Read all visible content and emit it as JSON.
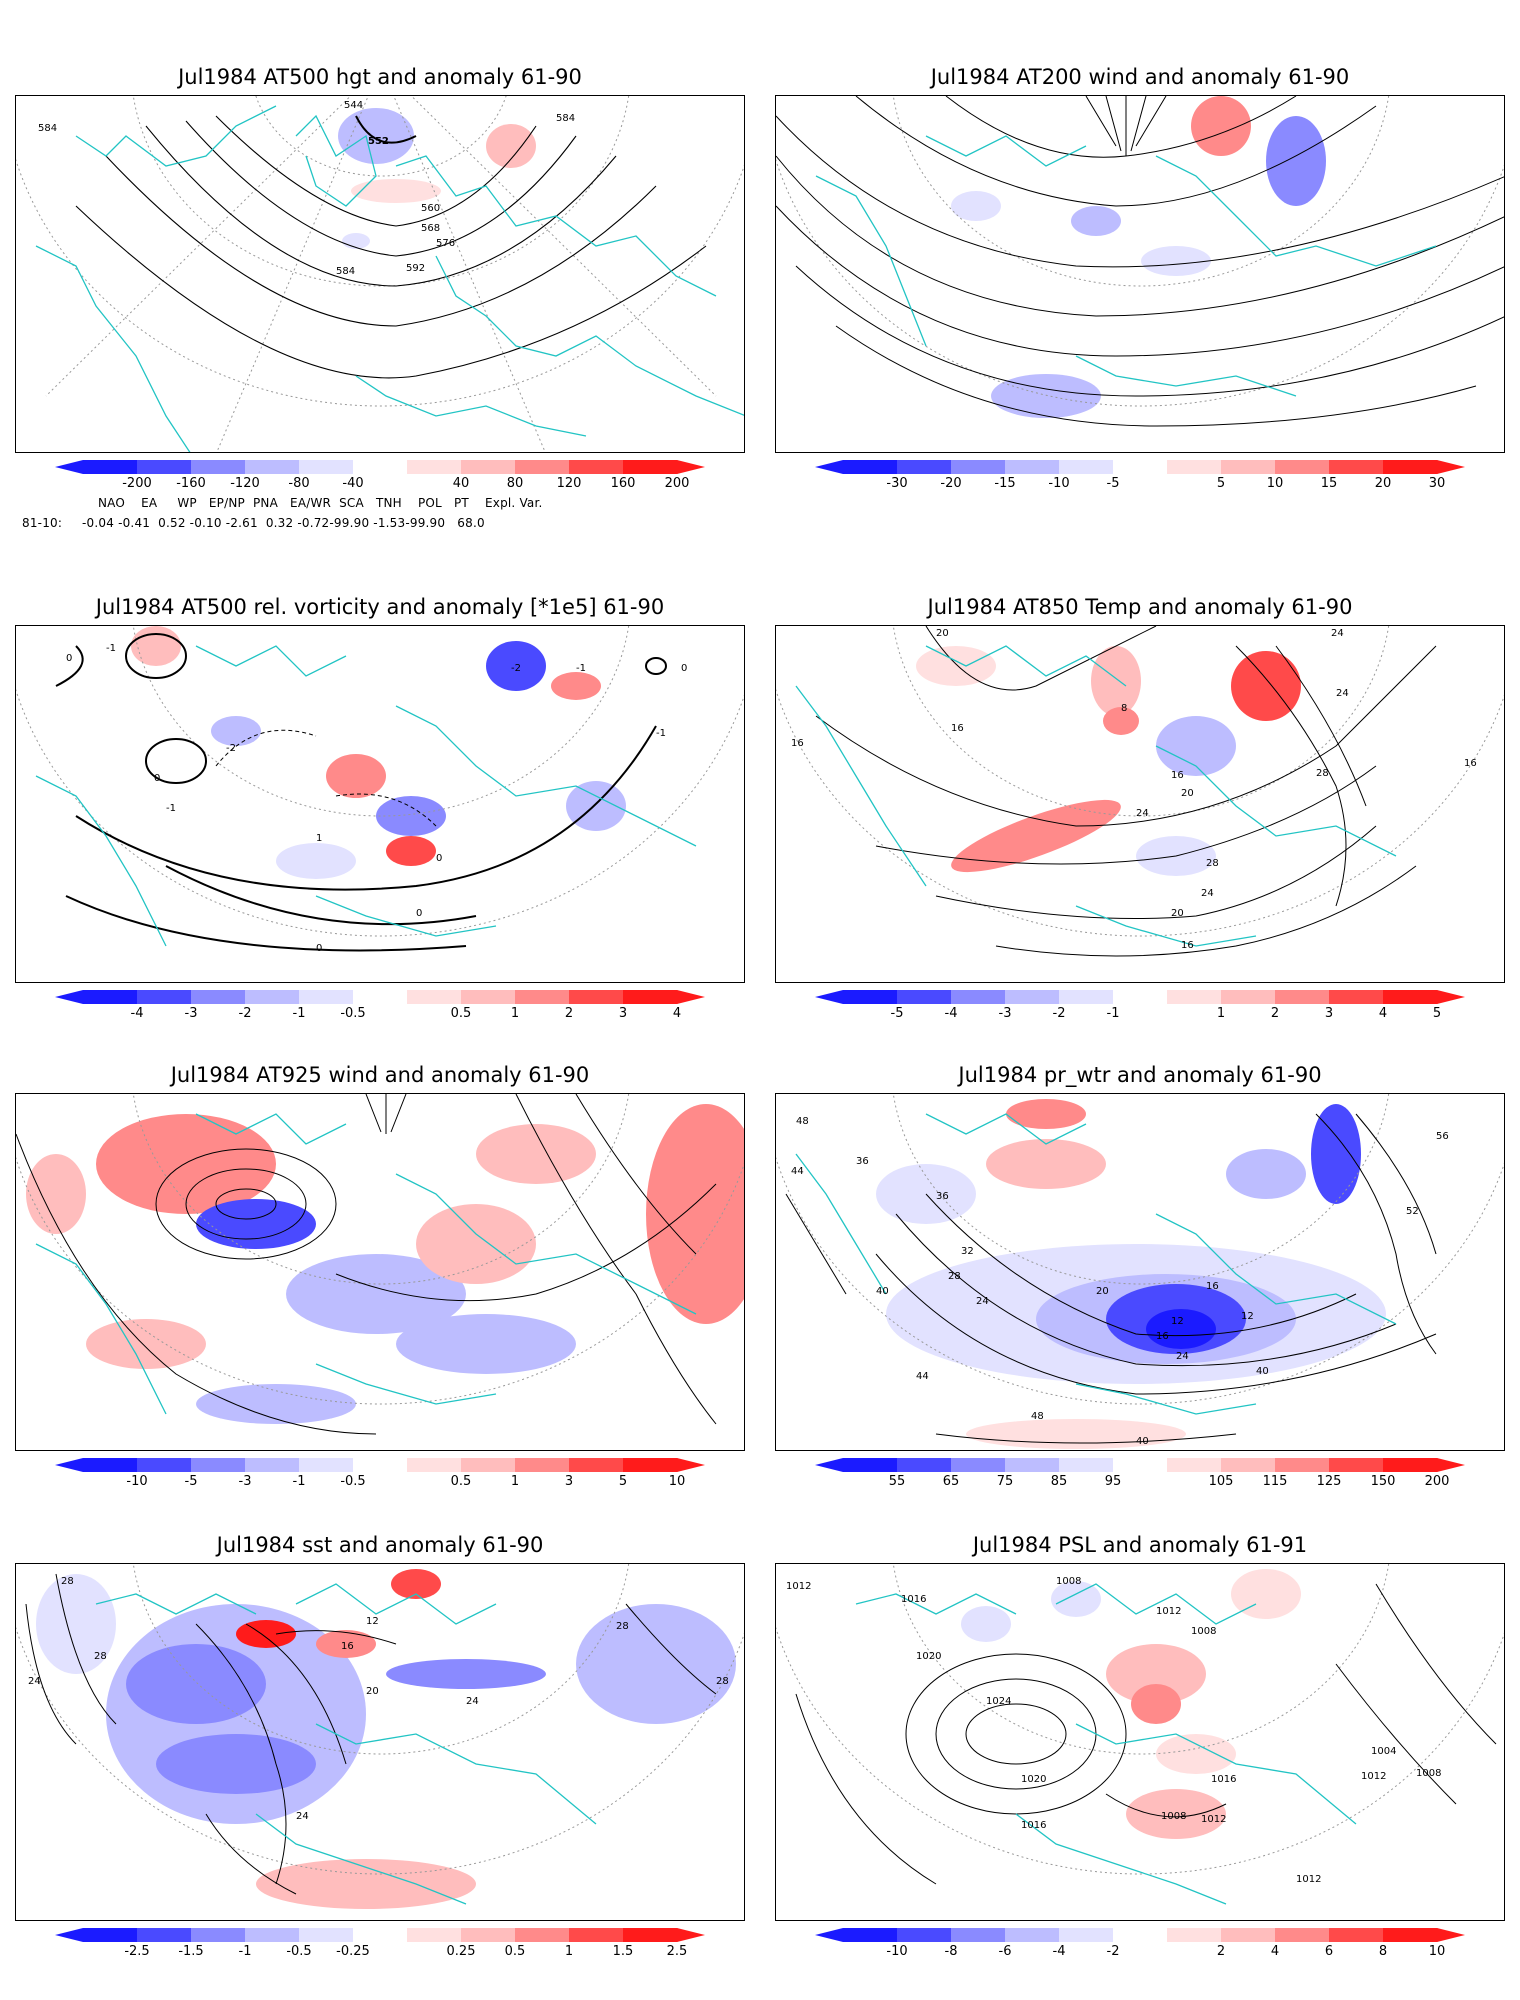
{
  "colors": {
    "neg": [
      "#1b1bff",
      "#4a4aff",
      "#8a8aff",
      "#bdbdff",
      "#e2e2ff"
    ],
    "pos": [
      "#ffe0e0",
      "#ffbdbd",
      "#ff8a8a",
      "#ff4a4a",
      "#ff1b1b"
    ],
    "coast": "#22c4c4",
    "contour": "#000000"
  },
  "panels": [
    {
      "id": "p1",
      "title": "Jul1984 AT500 hgt and anomaly 61-90",
      "ticks": [
        "-200",
        "-160",
        "-120",
        "-80",
        "-40",
        "40",
        "80",
        "120",
        "160",
        "200"
      ],
      "labels": [
        "584",
        "544",
        "552",
        "560",
        "568",
        "576",
        "584",
        "592",
        "584"
      ]
    },
    {
      "id": "p2",
      "title": "Jul1984 AT200 wind and anomaly 61-90",
      "ticks": [
        "-30",
        "-20",
        "-15",
        "-10",
        "-5",
        "5",
        "10",
        "15",
        "20",
        "30"
      ],
      "labels": []
    },
    {
      "id": "p3",
      "title": "Jul1984 AT500 rel. vorticity and anomaly [*1e5] 61-90",
      "ticks": [
        "-4",
        "-3",
        "-2",
        "-1",
        "-0.5",
        "0.5",
        "1",
        "2",
        "3",
        "4"
      ],
      "labels": [
        "0",
        "-1",
        "0",
        "-2",
        "-1",
        "0",
        "-1",
        "1",
        "0",
        "-2",
        "0",
        "-1",
        "0"
      ]
    },
    {
      "id": "p4",
      "title": "Jul1984 AT850 Temp and anomaly 61-90",
      "ticks": [
        "-5",
        "-4",
        "-3",
        "-2",
        "-1",
        "1",
        "2",
        "3",
        "4",
        "5"
      ],
      "labels": [
        "20",
        "16",
        "16",
        "24",
        "8",
        "16",
        "20",
        "24",
        "28",
        "16",
        "24",
        "20",
        "16",
        "28",
        "24"
      ]
    },
    {
      "id": "p5",
      "title": "Jul1984 AT925 wind and anomaly 61-90",
      "ticks": [
        "-10",
        "-5",
        "-3",
        "-1",
        "-0.5",
        "0.5",
        "1",
        "3",
        "5",
        "10"
      ],
      "labels": []
    },
    {
      "id": "p6",
      "title": "Jul1984 pr_wtr and anomaly 61-90",
      "ticks": [
        "55",
        "65",
        "75",
        "85",
        "95",
        "105",
        "115",
        "125",
        "150",
        "200"
      ],
      "labels": [
        "48",
        "36",
        "44",
        "40",
        "36",
        "32",
        "28",
        "24",
        "12",
        "16",
        "20",
        "12",
        "16",
        "24",
        "40",
        "44",
        "48",
        "56",
        "52",
        "40"
      ]
    },
    {
      "id": "p7",
      "title": "Jul1984 sst and anomaly 61-90",
      "ticks": [
        "-2.5",
        "-1.5",
        "-1",
        "-0.5",
        "-0.25",
        "0.25",
        "0.5",
        "1",
        "1.5",
        "2.5"
      ],
      "labels": [
        "28",
        "24",
        "28",
        "16",
        "12",
        "20",
        "24",
        "28",
        "28",
        "24"
      ]
    },
    {
      "id": "p8",
      "title": "Jul1984 PSL and anomaly 61-91",
      "ticks": [
        "-10",
        "-8",
        "-6",
        "-4",
        "-2",
        "2",
        "4",
        "6",
        "8",
        "10"
      ],
      "labels": [
        "1012",
        "1016",
        "1008",
        "1012",
        "1008",
        "1020",
        "1024",
        "1020",
        "1016",
        "1016",
        "1008",
        "1012",
        "1004",
        "1008",
        "1012",
        "1012"
      ]
    }
  ],
  "indices": {
    "header": "NAO    EA     WP   EP/NP  PNA   EA/WR  SCA   TNH    POL   PT    Expl. Var.",
    "row_label": "81-10:",
    "row_values": "-0.04 -0.41  0.52 -0.10 -2.61  0.32 -0.72-99.90 -1.53-99.90   68.0"
  }
}
